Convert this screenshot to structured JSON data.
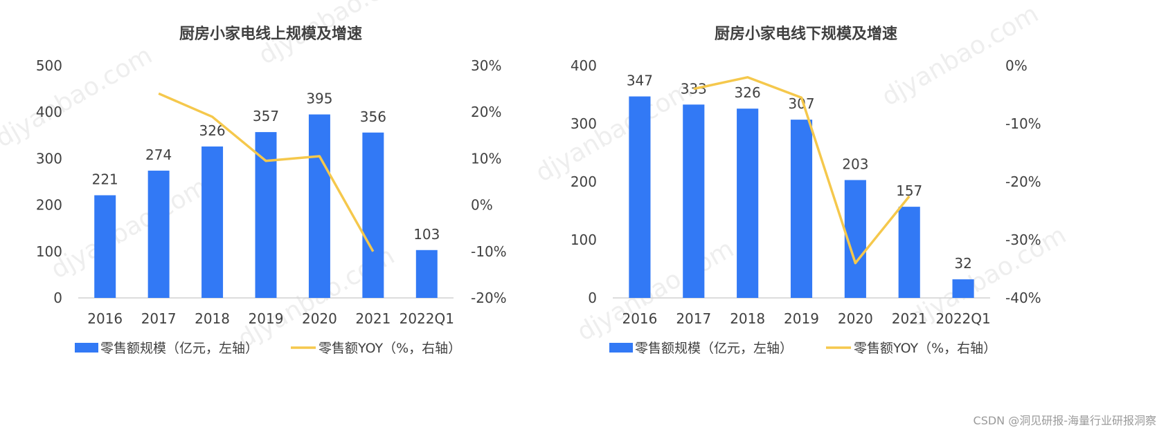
{
  "watermark": "djyanbao.com",
  "footer_text": "CSDN @洞见研报-海量行业研报洞察",
  "colors": {
    "bar": "#3279f5",
    "line": "#f5c84c",
    "text": "#404040",
    "axis": "#d0d0d0"
  },
  "chart_data": [
    {
      "type": "bar+line",
      "title": "厨房小家电线上规模及增速",
      "categories": [
        "2016",
        "2017",
        "2018",
        "2019",
        "2020",
        "2021",
        "2022Q1"
      ],
      "bar_series": {
        "name": "零售额规模（亿元，左轴）",
        "values": [
          221,
          274,
          326,
          357,
          395,
          356,
          103
        ]
      },
      "line_series": {
        "name": "零售额YOY（%，右轴）",
        "values": [
          null,
          24,
          19,
          9.5,
          10.5,
          -10,
          null
        ]
      },
      "y_left": {
        "min": 0,
        "max": 500,
        "ticks": [
          "0",
          "100",
          "200",
          "300",
          "400",
          "500"
        ]
      },
      "y_right": {
        "min": -20,
        "max": 30,
        "ticks": [
          "-20%",
          "-10%",
          "0%",
          "10%",
          "20%",
          "30%"
        ]
      },
      "legend_position": "bottom",
      "grid": false
    },
    {
      "type": "bar+line",
      "title": "厨房小家电线下规模及增速",
      "categories": [
        "2016",
        "2017",
        "2018",
        "2019",
        "2020",
        "2021",
        "2022Q1"
      ],
      "bar_series": {
        "name": "零售额规模（亿元，左轴）",
        "values": [
          347,
          333,
          326,
          307,
          203,
          157,
          32
        ]
      },
      "line_series": {
        "name": "零售额YOY（%，右轴）",
        "values": [
          null,
          -4,
          -2,
          -5.5,
          -34,
          -22.5,
          null
        ]
      },
      "y_left": {
        "min": 0,
        "max": 400,
        "ticks": [
          "0",
          "100",
          "200",
          "300",
          "400"
        ]
      },
      "y_right": {
        "min": -40,
        "max": 0,
        "ticks": [
          "-40%",
          "-30%",
          "-20%",
          "-10%",
          "0%"
        ]
      },
      "legend_position": "bottom",
      "grid": false
    }
  ]
}
